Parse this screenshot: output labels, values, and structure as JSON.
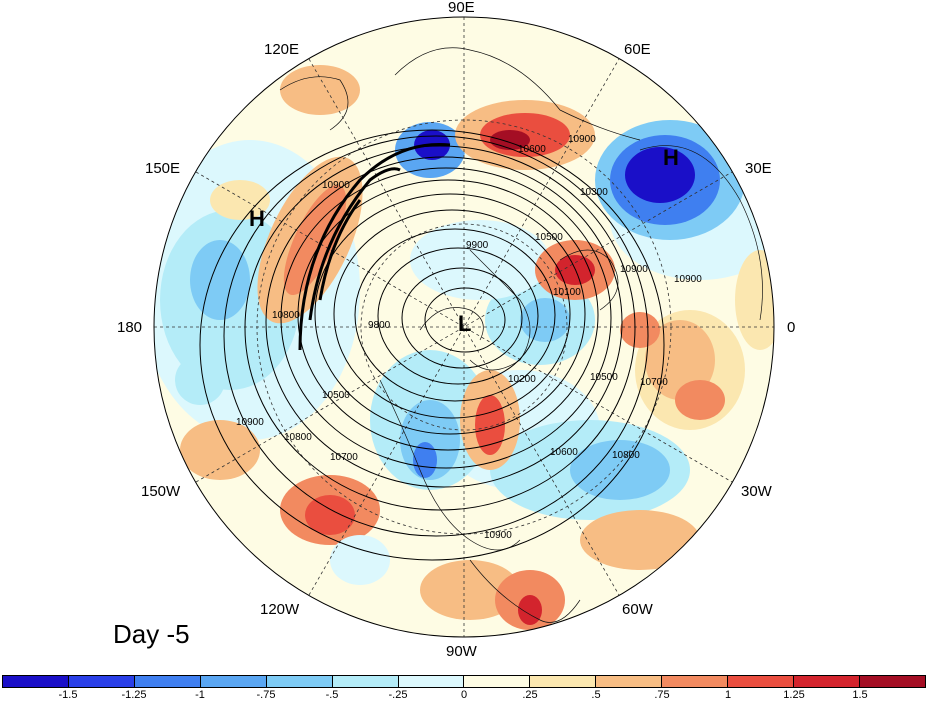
{
  "lon_labels": {
    "e90": "90E",
    "e60": "60E",
    "e30": "30E",
    "e0": "0",
    "w30": "30W",
    "w60": "60W",
    "w90": "90W",
    "w120": "120W",
    "w150": "150W",
    "w180": "180",
    "e150": "150E",
    "e120": "120E"
  },
  "pressure_centers": {
    "high_pacific": "H",
    "high_eurasia": "H",
    "low_pole": "L"
  },
  "contour_labels": [
    "10900",
    "10600",
    "10500",
    "10900",
    "9900",
    "10300",
    "10100",
    "10900",
    "10800",
    "9800",
    "10200",
    "10500",
    "10700",
    "10500",
    "10600",
    "10700",
    "10800",
    "10900",
    "10900",
    "10800",
    "10900"
  ],
  "day_label": "Day -5",
  "colorbar": {
    "colors": [
      "#1a0fc8",
      "#2a3fe8",
      "#3f7ff0",
      "#5aa6f2",
      "#7ecbf5",
      "#b4ecf8",
      "#dcf8fd",
      "#fefce4",
      "#fbe7b0",
      "#f7bd84",
      "#f28a60",
      "#ea4e3f",
      "#d3242d",
      "#a40e24"
    ],
    "ticks": [
      "-1.5",
      "-1.25",
      "-1",
      "-.75",
      "-.5",
      "-.25",
      "0",
      ".25",
      ".5",
      ".75",
      "1",
      "1.25",
      "1.5"
    ]
  }
}
